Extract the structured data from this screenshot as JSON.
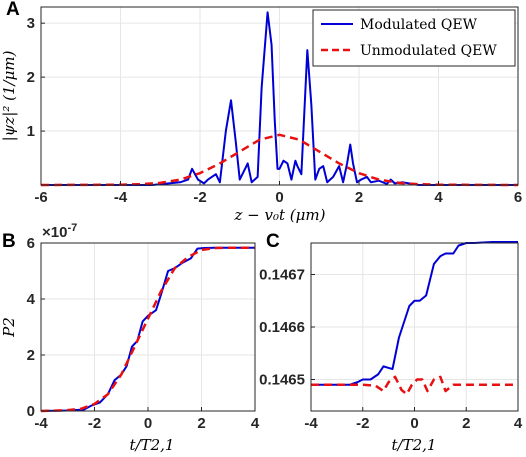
{
  "panels": [
    {
      "id": "A",
      "label": "A"
    },
    {
      "id": "B",
      "label": "B"
    },
    {
      "id": "C",
      "label": "C"
    }
  ],
  "colors": {
    "modulated": "#0000d6",
    "unmodulated": "#e81010",
    "axis": "#262626",
    "grid": "#e6e6e6"
  },
  "chart_data": [
    {
      "panel": "A",
      "type": "line",
      "xlabel": "z − v₀t (μm)",
      "ylabel": "|ψz|² (1/μm)",
      "xlim": [
        -6,
        6
      ],
      "ylim": [
        0,
        3.3
      ],
      "xticks": [
        "-6",
        "-4",
        "-2",
        "0",
        "2",
        "4",
        "6"
      ],
      "yticks": [
        "1",
        "2",
        "3"
      ],
      "grid": true,
      "legend_position": "top-right",
      "series": [
        {
          "name": "Modulated QEW",
          "style": "solid",
          "color": "#0000d6",
          "x": [
            -6,
            -3.2,
            -2.5,
            -2.3,
            -2.2,
            -2.05,
            -1.9,
            -1.8,
            -1.6,
            -1.5,
            -1.35,
            -1.22,
            -1.1,
            -1.0,
            -0.9,
            -0.8,
            -0.7,
            -0.55,
            -0.45,
            -0.3,
            -0.2,
            -0.12,
            -0.05,
            0.0,
            0.1,
            0.2,
            0.3,
            0.4,
            0.45,
            0.55,
            0.7,
            0.8,
            0.9,
            1.0,
            1.1,
            1.2,
            1.35,
            1.5,
            1.6,
            1.7,
            1.78,
            1.85,
            1.95,
            2.05,
            2.2,
            2.3,
            2.5,
            2.7,
            2.8,
            2.9,
            3.1,
            3.5,
            6
          ],
          "y": [
            0.0,
            0.0,
            0.05,
            0.1,
            0.3,
            0.1,
            0.03,
            0.1,
            0.2,
            0.05,
            1.0,
            1.57,
            0.8,
            0.1,
            0.25,
            0.4,
            0.05,
            0.15,
            1.8,
            3.2,
            2.6,
            1.2,
            0.3,
            0.3,
            0.45,
            0.4,
            0.1,
            0.45,
            0.35,
            0.2,
            2.5,
            1.5,
            0.1,
            0.3,
            0.35,
            0.05,
            0.15,
            0.35,
            0.05,
            0.4,
            0.75,
            0.4,
            0.05,
            0.1,
            0.15,
            0.05,
            0.08,
            0.02,
            0.1,
            0.03,
            0.05,
            0.0,
            0.0
          ]
        },
        {
          "name": "Unmodulated QEW",
          "style": "dashed",
          "color": "#e81010",
          "x": [
            -6,
            -4,
            -3.5,
            -3,
            -2.5,
            -2,
            -1.5,
            -1,
            -0.5,
            0,
            0.5,
            1,
            1.5,
            2,
            2.5,
            3,
            3.5,
            4,
            6
          ],
          "y": [
            0.0,
            0.005,
            0.015,
            0.04,
            0.1,
            0.22,
            0.4,
            0.62,
            0.84,
            0.93,
            0.84,
            0.62,
            0.4,
            0.22,
            0.1,
            0.04,
            0.015,
            0.005,
            0.0
          ]
        }
      ]
    },
    {
      "panel": "B",
      "type": "line",
      "xlabel": "t/T2,1",
      "ylabel": "P2",
      "exponent": "×10",
      "exponent_power": "-7",
      "xlim": [
        -4,
        4
      ],
      "ylim": [
        0,
        6
      ],
      "xticks": [
        "-4",
        "-2",
        "0",
        "2",
        "4"
      ],
      "yticks": [
        "0",
        "2",
        "4",
        "6"
      ],
      "grid": true,
      "series": [
        {
          "name": "Modulated QEW",
          "style": "solid",
          "color": "#0000d6",
          "x": [
            -4,
            -3,
            -2.4,
            -2.1,
            -1.8,
            -1.5,
            -1.25,
            -1.0,
            -0.8,
            -0.6,
            -0.4,
            -0.2,
            0.0,
            0.3,
            0.5,
            0.75,
            1.0,
            1.3,
            1.6,
            1.85,
            2.1,
            2.5,
            3,
            4
          ],
          "y": [
            0.0,
            0.02,
            0.05,
            0.2,
            0.3,
            0.6,
            1.1,
            1.3,
            1.6,
            2.3,
            2.5,
            3.2,
            3.4,
            3.6,
            4.2,
            5.0,
            5.1,
            5.3,
            5.45,
            5.8,
            5.82,
            5.83,
            5.83,
            5.83
          ]
        },
        {
          "name": "Unmodulated QEW",
          "style": "dashed",
          "color": "#e81010",
          "x": [
            -4,
            -3,
            -2.5,
            -2,
            -1.5,
            -1,
            -0.5,
            0,
            0.5,
            1,
            1.5,
            2,
            2.5,
            3,
            4
          ],
          "y": [
            0.0,
            0.03,
            0.08,
            0.25,
            0.6,
            1.3,
            2.3,
            3.3,
            4.3,
            5.1,
            5.5,
            5.75,
            5.82,
            5.83,
            5.83
          ]
        }
      ]
    },
    {
      "panel": "C",
      "type": "line",
      "xlabel": "t/T2,1",
      "ylabel": "",
      "xlim": [
        -4,
        4
      ],
      "ylim": [
        0.14644,
        0.14676
      ],
      "xticks": [
        "-4",
        "-2",
        "0",
        "2",
        "4"
      ],
      "yticks": [
        "0.1465",
        "0.1466",
        "0.1467"
      ],
      "grid": true,
      "series": [
        {
          "name": "Modulated QEW",
          "style": "solid",
          "color": "#0000d6",
          "x": [
            -4,
            -2.5,
            -2.2,
            -2.0,
            -1.7,
            -1.4,
            -1.2,
            -1.0,
            -0.85,
            -0.6,
            -0.4,
            -0.2,
            0.0,
            0.2,
            0.45,
            0.6,
            0.75,
            1.0,
            1.2,
            1.5,
            1.7,
            2.0,
            2.3,
            3,
            4
          ],
          "y": [
            0.14649,
            0.14649,
            0.146495,
            0.1465,
            0.1465,
            0.14651,
            0.146525,
            0.146522,
            0.14652,
            0.14658,
            0.14661,
            0.14664,
            0.14665,
            0.14665,
            0.14666,
            0.14669,
            0.14672,
            0.146735,
            0.14674,
            0.14674,
            0.146755,
            0.14676,
            0.14676,
            0.146762,
            0.146762
          ]
        },
        {
          "name": "Unmodulated QEW",
          "style": "dashed",
          "color": "#e81010",
          "x": [
            -4,
            -2.0,
            -1.5,
            -1.2,
            -1.0,
            -0.75,
            -0.5,
            -0.3,
            -0.1,
            0.1,
            0.3,
            0.5,
            0.75,
            1.0,
            1.2,
            1.5,
            2.0,
            4
          ],
          "y": [
            0.14649,
            0.14649,
            0.146488,
            0.146478,
            0.146495,
            0.146505,
            0.14648,
            0.146472,
            0.14649,
            0.1465,
            0.1465,
            0.146478,
            0.1465,
            0.146505,
            0.146478,
            0.14649,
            0.14649,
            0.14649
          ]
        }
      ]
    }
  ]
}
